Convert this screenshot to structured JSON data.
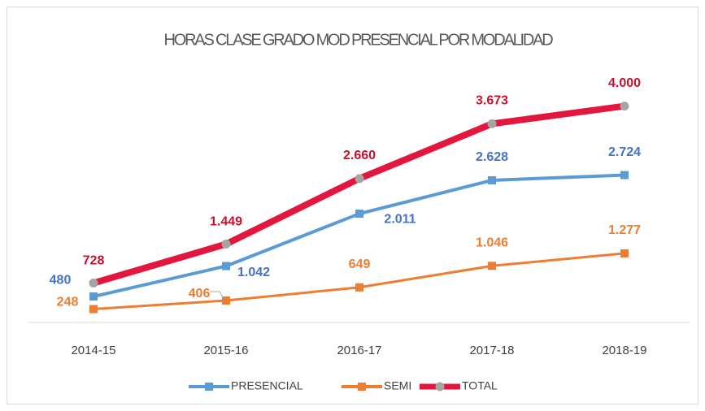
{
  "chart_data": {
    "type": "line",
    "title": "HORAS CLASE GRADO MOD PRESENCIAL POR MODALIDAD",
    "categories": [
      "2014-15",
      "2015-16",
      "2016-17",
      "2017-18",
      "2018-19"
    ],
    "series": [
      {
        "name": "PRESENCIAL",
        "color": "#5b9bd5",
        "marker": "square",
        "values": [
          480,
          1042,
          2011,
          2628,
          2724
        ],
        "value_labels": [
          "480",
          "1.042",
          "2.011",
          "2.628",
          "2.724"
        ]
      },
      {
        "name": "SEMI",
        "color": "#ed7d31",
        "marker": "square",
        "values": [
          248,
          406,
          649,
          1046,
          1277
        ],
        "value_labels": [
          "248",
          "406",
          "649",
          "1.046",
          "1.277"
        ]
      },
      {
        "name": "TOTAL",
        "color": "#e3173e",
        "marker": "circle",
        "marker_color": "#a5a5a5",
        "values": [
          728,
          1449,
          2660,
          3673,
          4000
        ],
        "value_labels": [
          "728",
          "1.449",
          "2.660",
          "3.673",
          "4.000"
        ]
      }
    ],
    "legend": "bottom",
    "grid": false
  }
}
